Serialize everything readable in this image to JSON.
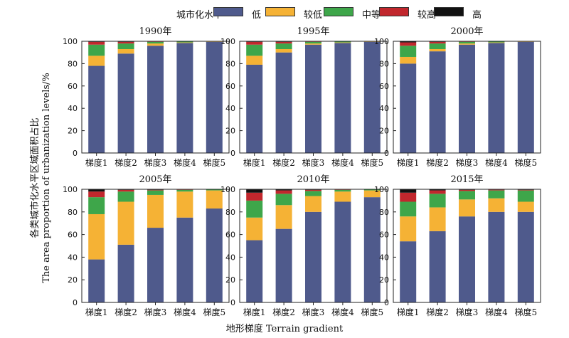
{
  "legend": {
    "title": "城市化水平",
    "items": [
      {
        "label": "低",
        "color": "#4f5a8c"
      },
      {
        "label": "较低",
        "color": "#f5b235"
      },
      {
        "label": "中等",
        "color": "#3ea64a"
      },
      {
        "label": "较高",
        "color": "#c1272d"
      },
      {
        "label": "高",
        "color": "#111111"
      }
    ]
  },
  "axis_labels": {
    "ylabel_zh": "各类城市化水平区域面积占比",
    "ylabel_en": "The area proportion of urbanization levels/%",
    "xlabel": "地形梯度 Terrain gradient"
  },
  "chart_data": [
    {
      "type": "bar",
      "stacked": true,
      "title": "1990年",
      "categories": [
        "梯度1",
        "梯度2",
        "梯度3",
        "梯度4",
        "梯度5"
      ],
      "series": [
        {
          "name": "低",
          "values": [
            78,
            89,
            96,
            98.5,
            99.5
          ]
        },
        {
          "name": "较低",
          "values": [
            9,
            4,
            2,
            0.5,
            0.2
          ]
        },
        {
          "name": "中等",
          "values": [
            10,
            5,
            1.5,
            0.8,
            0.3
          ]
        },
        {
          "name": "较高",
          "values": [
            2.5,
            1.5,
            0.5,
            0.2,
            0
          ]
        },
        {
          "name": "高",
          "values": [
            0.5,
            0.5,
            0,
            0,
            0
          ]
        }
      ],
      "yticks": [
        0,
        20,
        40,
        60,
        80,
        100
      ],
      "ylim": [
        0,
        100
      ]
    },
    {
      "type": "bar",
      "stacked": true,
      "title": "1995年",
      "categories": [
        "梯度1",
        "梯度2",
        "梯度3",
        "梯度4",
        "梯度5"
      ],
      "series": [
        {
          "name": "低",
          "values": [
            79,
            90,
            97,
            98.5,
            99.5
          ]
        },
        {
          "name": "较低",
          "values": [
            8,
            3,
            1,
            0.5,
            0.2
          ]
        },
        {
          "name": "中等",
          "values": [
            10,
            5,
            1.5,
            0.8,
            0.3
          ]
        },
        {
          "name": "较高",
          "values": [
            2.5,
            1.5,
            0.5,
            0.2,
            0
          ]
        },
        {
          "name": "高",
          "values": [
            0.5,
            0.5,
            0,
            0,
            0
          ]
        }
      ],
      "yticks": [
        0,
        20,
        40,
        60,
        80,
        100
      ],
      "ylim": [
        0,
        100
      ]
    },
    {
      "type": "bar",
      "stacked": true,
      "title": "2000年",
      "categories": [
        "梯度1",
        "梯度2",
        "梯度3",
        "梯度4",
        "梯度5"
      ],
      "series": [
        {
          "name": "低",
          "values": [
            80,
            91,
            97,
            98.5,
            99.5
          ]
        },
        {
          "name": "较低",
          "values": [
            6,
            2,
            1,
            0.5,
            0.2
          ]
        },
        {
          "name": "中等",
          "values": [
            10,
            5,
            1.5,
            0.8,
            0.3
          ]
        },
        {
          "name": "较高",
          "values": [
            3,
            1.5,
            0.5,
            0.2,
            0
          ]
        },
        {
          "name": "高",
          "values": [
            1,
            0.5,
            0,
            0,
            0
          ]
        }
      ],
      "yticks": [
        0,
        20,
        40,
        60,
        80,
        100
      ],
      "ylim": [
        0,
        100
      ]
    },
    {
      "type": "bar",
      "stacked": true,
      "title": "2005年",
      "categories": [
        "梯度1",
        "梯度2",
        "梯度3",
        "梯度4",
        "梯度5"
      ],
      "series": [
        {
          "name": "低",
          "values": [
            38,
            51,
            66,
            75,
            83
          ]
        },
        {
          "name": "较低",
          "values": [
            40,
            38,
            29,
            23,
            16
          ]
        },
        {
          "name": "中等",
          "values": [
            15,
            9,
            4,
            1.5,
            0.8
          ]
        },
        {
          "name": "较高",
          "values": [
            5,
            1.5,
            0.5,
            0.3,
            0.1
          ]
        },
        {
          "name": "高",
          "values": [
            2,
            0.5,
            0.5,
            0.2,
            0.1
          ]
        }
      ],
      "yticks": [
        0,
        20,
        40,
        60,
        80,
        100
      ],
      "ylim": [
        0,
        100
      ]
    },
    {
      "type": "bar",
      "stacked": true,
      "title": "2010年",
      "categories": [
        "梯度1",
        "梯度2",
        "梯度3",
        "梯度4",
        "梯度5"
      ],
      "series": [
        {
          "name": "低",
          "values": [
            55,
            65,
            80,
            89,
            93
          ]
        },
        {
          "name": "较低",
          "values": [
            20,
            21,
            14,
            9,
            6
          ]
        },
        {
          "name": "中等",
          "values": [
            15,
            10,
            4.5,
            1.5,
            0.8
          ]
        },
        {
          "name": "较高",
          "values": [
            7,
            3,
            1,
            0.3,
            0.1
          ]
        },
        {
          "name": "高",
          "values": [
            3,
            1,
            0.5,
            0.2,
            0.1
          ]
        }
      ],
      "yticks": [
        0,
        20,
        40,
        60,
        80,
        100
      ],
      "ylim": [
        0,
        100
      ]
    },
    {
      "type": "bar",
      "stacked": true,
      "title": "2015年",
      "categories": [
        "梯度1",
        "梯度2",
        "梯度3",
        "梯度4",
        "梯度5"
      ],
      "series": [
        {
          "name": "低",
          "values": [
            54,
            63,
            76,
            80,
            80
          ]
        },
        {
          "name": "较低",
          "values": [
            22,
            21,
            15,
            12,
            9
          ]
        },
        {
          "name": "中等",
          "values": [
            13,
            12,
            7.5,
            7,
            10
          ]
        },
        {
          "name": "较高",
          "values": [
            8,
            3,
            1,
            0.6,
            0.5
          ]
        },
        {
          "name": "高",
          "values": [
            3,
            1,
            0.5,
            0.4,
            0.5
          ]
        }
      ],
      "yticks": [
        0,
        20,
        40,
        60,
        80,
        100
      ],
      "ylim": [
        0,
        100
      ]
    }
  ]
}
